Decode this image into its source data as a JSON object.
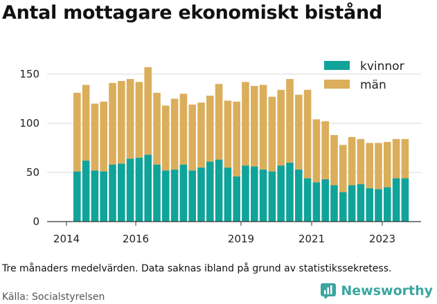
{
  "title": "Antal mottagare ekonomiskt bistånd",
  "footnote": "Tre månaders medelvärden. Data saknas ibland på grund av statistikssekretess.",
  "source": "Källa: Socialstyrelsen",
  "brand": "Newsworthy",
  "colors": {
    "kvinnor": "#10a399",
    "man": "#dbae5c",
    "grid": "#d9d9d9",
    "axis": "#333333",
    "brand": "#3aa6a0"
  },
  "chart_data": {
    "type": "bar",
    "stacked": true,
    "title": "Antal mottagare ekonomiskt bistånd",
    "xlabel": "",
    "ylabel": "",
    "ylim": [
      0,
      165
    ],
    "y_ticks": [
      0,
      50,
      100,
      150
    ],
    "x_tick_labels": [
      "2014",
      "2016",
      "2019",
      "2021",
      "2023"
    ],
    "grid": true,
    "legend_position": "top-right",
    "series": [
      {
        "name": "kvinnor",
        "values": [
          51,
          62,
          52,
          51,
          58,
          59,
          64,
          65,
          68,
          58,
          52,
          53,
          58,
          52,
          55,
          61,
          63,
          55,
          46,
          57,
          56,
          53,
          51,
          57,
          60,
          53,
          44,
          40,
          43,
          37,
          30,
          37,
          38,
          34,
          33,
          35,
          44,
          44
        ]
      },
      {
        "name": "män",
        "values": [
          80,
          77,
          68,
          71,
          83,
          84,
          81,
          77,
          89,
          73,
          66,
          72,
          72,
          67,
          66,
          67,
          77,
          68,
          76,
          85,
          82,
          86,
          76,
          77,
          85,
          76,
          90,
          64,
          59,
          51,
          48,
          49,
          46,
          46,
          47,
          46,
          40,
          40
        ]
      }
    ]
  }
}
